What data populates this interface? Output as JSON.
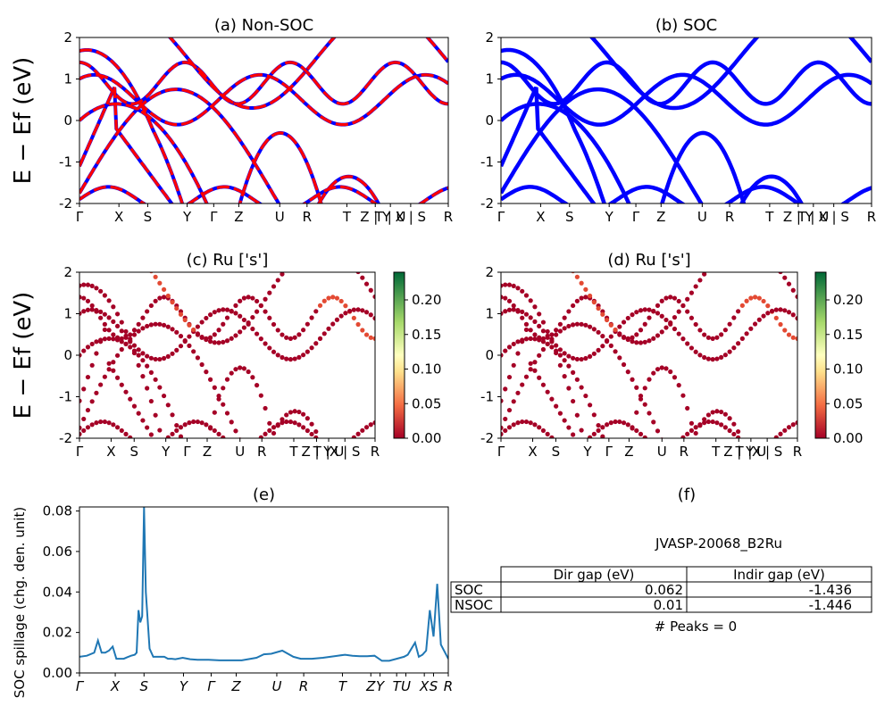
{
  "figure": {
    "ylabel": "E − Ef (eV)",
    "spill_ylabel": "SOC spillage (chg. den. unit)",
    "kpath": [
      "Γ",
      "X",
      "S",
      "Y",
      "Γ",
      "Z",
      "U",
      "R",
      "T",
      "Z | Y",
      "T | U",
      "X | S",
      "R"
    ],
    "kpath_italic": [
      "Γ",
      "X",
      "S",
      "Y",
      "Γ",
      "Z",
      "U",
      "R",
      "T",
      "Z",
      "Y",
      "T",
      "U",
      "X",
      "S",
      "R"
    ]
  },
  "panels": {
    "a": {
      "title": "(a) Non-SOC"
    },
    "b": {
      "title": "(b) SOC"
    },
    "c": {
      "title": "(c)  Ru ['s']"
    },
    "d": {
      "title": "(d) Ru ['s']"
    },
    "e": {
      "title": "(e)"
    },
    "f": {
      "title": "(f)"
    }
  },
  "colorbar": {
    "ticks": [
      "0.20",
      "0.15",
      "0.10",
      "0.05",
      "0.00"
    ]
  },
  "table": {
    "material": "JVASP-20068_B2Ru",
    "headers": [
      "",
      "Dir gap (eV)",
      "Indir gap (eV)"
    ],
    "rows": [
      [
        "SOC",
        "0.062",
        "-1.436"
      ],
      [
        "NSOC",
        "0.01",
        "-1.446"
      ]
    ],
    "peaks": "# Peaks = 0"
  },
  "chart_data": [
    {
      "type": "line",
      "panel": "a",
      "title": "(a) Non-SOC",
      "ylabel": "E − Ef (eV)",
      "ylim": [
        -2,
        2
      ],
      "yticks": [
        -2,
        -1,
        0,
        1,
        2
      ],
      "xticks": [
        "Γ",
        "X",
        "S",
        "Y",
        "Γ",
        "Z",
        "U",
        "R",
        "T",
        "Z | Y",
        "T | U",
        "X | S",
        "R"
      ],
      "series": [
        {
          "name": "Non-SOC",
          "color": "#ff0000"
        },
        {
          "name": "SOC",
          "color": "#0000ff"
        }
      ]
    },
    {
      "type": "line",
      "panel": "b",
      "title": "(b) SOC",
      "ylim": [
        -2,
        2
      ],
      "yticks": [
        -2,
        -1,
        0,
        1,
        2
      ],
      "series": [
        {
          "name": "SOC",
          "color": "#0000ff"
        }
      ]
    },
    {
      "type": "scatter",
      "panel": "c",
      "title": "(c)  Ru ['s']",
      "ylim": [
        -2,
        2
      ],
      "colorbar_range": [
        0,
        0.24
      ],
      "colormap": "RdYlGn"
    },
    {
      "type": "scatter",
      "panel": "d",
      "title": "(d) Ru ['s']",
      "ylim": [
        -2,
        2
      ],
      "colorbar_range": [
        0,
        0.24
      ],
      "colormap": "RdYlGn"
    },
    {
      "type": "line",
      "panel": "e",
      "title": "(e)",
      "ylabel": "SOC spillage (chg. den. unit)",
      "ylim": [
        0,
        0.082
      ],
      "yticks": [
        0.0,
        0.02,
        0.04,
        0.06,
        0.08
      ],
      "x": [
        0,
        0.02,
        0.04,
        0.05,
        0.06,
        0.07,
        0.08,
        0.09,
        0.1,
        0.12,
        0.13,
        0.14,
        0.15,
        0.155,
        0.16,
        0.165,
        0.17,
        0.175,
        0.18,
        0.19,
        0.2,
        0.21,
        0.22,
        0.23,
        0.24,
        0.25,
        0.26,
        0.28,
        0.3,
        0.32,
        0.35,
        0.38,
        0.4,
        0.44,
        0.48,
        0.5,
        0.52,
        0.55,
        0.58,
        0.6,
        0.63,
        0.66,
        0.7,
        0.72,
        0.74,
        0.76,
        0.78,
        0.8,
        0.82,
        0.84,
        0.86,
        0.87,
        0.88,
        0.89,
        0.9,
        0.91,
        0.92,
        0.93,
        0.94,
        0.95,
        0.96,
        0.97,
        0.98,
        1.0
      ],
      "values": [
        0.008,
        0.0085,
        0.01,
        0.016,
        0.01,
        0.01,
        0.011,
        0.013,
        0.007,
        0.007,
        0.0078,
        0.0085,
        0.009,
        0.01,
        0.031,
        0.025,
        0.028,
        0.082,
        0.04,
        0.012,
        0.008,
        0.008,
        0.008,
        0.008,
        0.007,
        0.007,
        0.0068,
        0.0075,
        0.0068,
        0.0065,
        0.0065,
        0.0062,
        0.0062,
        0.0062,
        0.0075,
        0.0092,
        0.0095,
        0.011,
        0.008,
        0.007,
        0.007,
        0.0075,
        0.0085,
        0.009,
        0.0085,
        0.0083,
        0.0083,
        0.0085,
        0.006,
        0.006,
        0.007,
        0.0075,
        0.008,
        0.009,
        0.012,
        0.015,
        0.008,
        0.009,
        0.011,
        0.031,
        0.018,
        0.044,
        0.014,
        0.007
      ],
      "xticks": [
        "Γ",
        "X",
        "S",
        "Y",
        "Γ",
        "Z",
        "U",
        "R",
        "T",
        "Z",
        "Y",
        "T",
        "U",
        "X",
        "S",
        "R"
      ]
    }
  ]
}
